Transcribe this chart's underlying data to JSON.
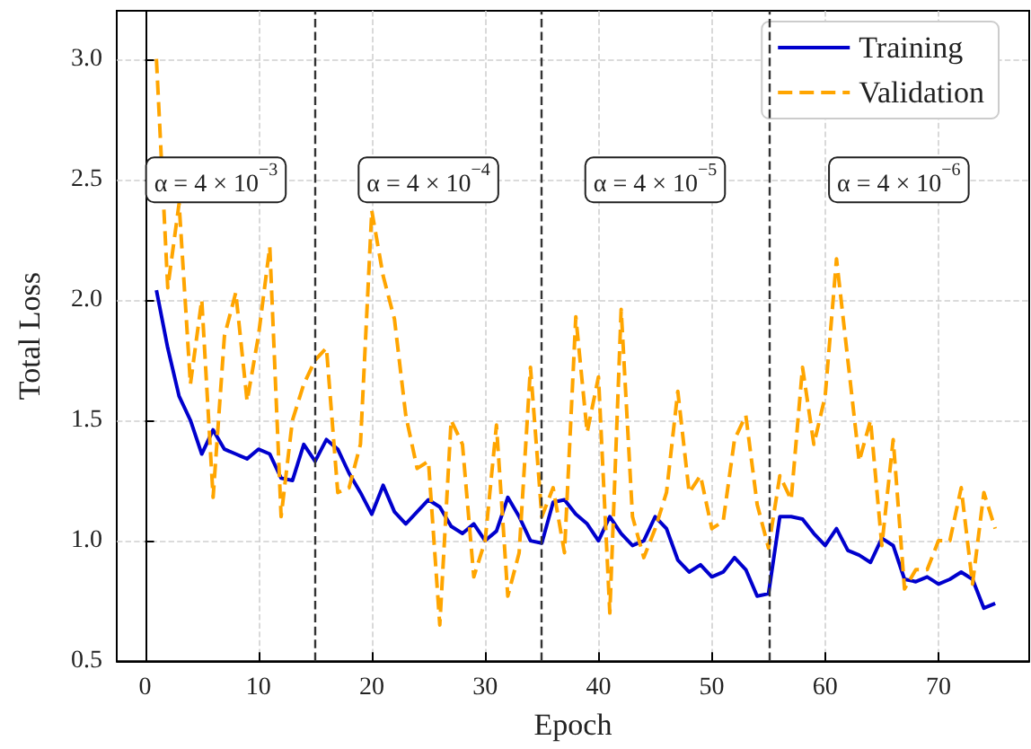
{
  "chart_data": {
    "type": "line",
    "xlabel": "Epoch",
    "ylabel": "Total Loss",
    "x": [
      1,
      2,
      3,
      4,
      5,
      6,
      7,
      8,
      9,
      10,
      11,
      12,
      13,
      14,
      15,
      16,
      17,
      18,
      19,
      20,
      21,
      22,
      23,
      24,
      25,
      26,
      27,
      28,
      29,
      30,
      31,
      32,
      33,
      34,
      35,
      36,
      37,
      38,
      39,
      40,
      41,
      42,
      43,
      44,
      45,
      46,
      47,
      48,
      49,
      50,
      51,
      52,
      53,
      54,
      55,
      56,
      57,
      58,
      59,
      60,
      61,
      62,
      63,
      64,
      65,
      66,
      67,
      68,
      69,
      70,
      71,
      72,
      73,
      74,
      75
    ],
    "series": [
      {
        "name": "Training",
        "color": "#0000cd",
        "line_style": "solid",
        "values": [
          2.04,
          1.8,
          1.6,
          1.5,
          1.36,
          1.46,
          1.38,
          1.36,
          1.34,
          1.38,
          1.36,
          1.26,
          1.25,
          1.4,
          1.33,
          1.42,
          1.38,
          1.28,
          1.2,
          1.11,
          1.23,
          1.12,
          1.07,
          1.12,
          1.17,
          1.14,
          1.06,
          1.03,
          1.07,
          1.0,
          1.04,
          1.18,
          1.1,
          1.0,
          0.99,
          1.16,
          1.17,
          1.11,
          1.07,
          1.0,
          1.1,
          1.03,
          0.98,
          1.0,
          1.1,
          1.05,
          0.92,
          0.87,
          0.9,
          0.85,
          0.87,
          0.93,
          0.88,
          0.77,
          0.78,
          1.1,
          1.1,
          1.09,
          1.03,
          0.98,
          1.05,
          0.96,
          0.94,
          0.91,
          1.01,
          0.98,
          0.84,
          0.83,
          0.85,
          0.82,
          0.84,
          0.87,
          0.84,
          0.72,
          0.74
        ]
      },
      {
        "name": "Validation",
        "color": "#ffa500",
        "line_style": "dashed",
        "values": [
          3.0,
          2.05,
          2.4,
          1.65,
          2.0,
          1.18,
          1.85,
          2.03,
          1.58,
          1.85,
          2.22,
          1.1,
          1.5,
          1.65,
          1.75,
          1.8,
          1.2,
          1.22,
          1.4,
          2.37,
          2.1,
          1.92,
          1.52,
          1.3,
          1.33,
          0.65,
          1.5,
          1.4,
          0.85,
          1.0,
          1.48,
          0.77,
          0.95,
          1.72,
          1.1,
          1.22,
          0.95,
          1.93,
          1.45,
          1.68,
          0.7,
          1.96,
          1.1,
          0.93,
          1.05,
          1.2,
          1.62,
          1.2,
          1.27,
          1.05,
          1.08,
          1.42,
          1.52,
          1.15,
          0.97,
          1.27,
          1.17,
          1.72,
          1.4,
          1.6,
          2.17,
          1.75,
          1.33,
          1.5,
          0.98,
          1.42,
          0.8,
          0.88,
          0.88,
          1.0,
          1.0,
          1.22,
          0.82,
          1.2,
          1.05
        ]
      }
    ],
    "xlim": [
      -2.5,
      78
    ],
    "ylim": [
      0.5,
      3.2
    ],
    "xticks": [
      0,
      10,
      20,
      30,
      40,
      50,
      60,
      70
    ],
    "yticks": [
      0.5,
      {
        "value": 1,
        "label": "1.0"
      },
      1.5,
      {
        "value": 2,
        "label": "2.0"
      },
      2.5,
      {
        "value": 3,
        "label": "3.0"
      }
    ],
    "ref_lines": [
      {
        "axis": "x",
        "value": 15,
        "color": "#333333",
        "line_style": "dashed"
      },
      {
        "axis": "x",
        "value": 35,
        "color": "#333333",
        "line_style": "dashed"
      },
      {
        "axis": "x",
        "value": 55,
        "color": "#333333",
        "line_style": "dashed"
      }
    ],
    "annotations": [
      "α = 4 × 10$^{−3}$",
      "α = 4 × 10$^{−4}$",
      "α = 4 × 10$^{−5}$",
      "α = 4 × 10$^{−6}$"
    ],
    "grid": true,
    "legend": "top right",
    "marker": "none"
  }
}
